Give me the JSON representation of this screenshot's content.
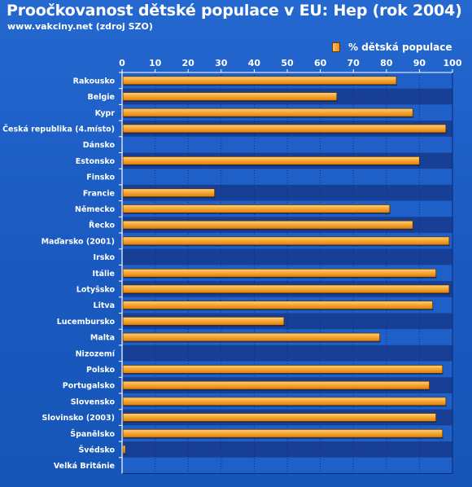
{
  "header": {
    "title": "Proočkovanost dětské populace v EU: Hep (rok 2004)",
    "subtitle": "www.vakciny.net (zdroj SZO)"
  },
  "colors": {
    "background": "#1e5ec6",
    "band_light": "#1f5fc8",
    "band_dark": "#173f95",
    "bar_light": "#f9c766",
    "bar_dark": "#ee8a10",
    "bar_edge": "#5a3000"
  },
  "chart_data": {
    "type": "bar",
    "orientation": "horizontal",
    "title": "Proočkovanost dětské populace v EU: Hep (rok 2004)",
    "xlim": [
      0,
      100
    ],
    "x_ticks": [
      0,
      10,
      20,
      30,
      40,
      50,
      60,
      70,
      80,
      90,
      100
    ],
    "x_axis_position": "top",
    "grid": true,
    "legend_position": "top-right",
    "categories": [
      "Rakousko",
      "Belgie",
      "Kypr",
      "Česká republika (4.místo)",
      "Dánsko",
      "Estonsko",
      "Finsko",
      "Francie",
      "Německo",
      "Řecko",
      "Maďarsko (2001)",
      "Irsko",
      "Itálie",
      "Lotyšsko",
      "Litva",
      "Lucembursko",
      "Malta",
      "Nizozemí",
      "Polsko",
      "Portugalsko",
      "Slovensko",
      "Slovinsko (2003)",
      "Španělsko",
      "Švédsko",
      "Velká Británie"
    ],
    "series": [
      {
        "name": "% dětská populace",
        "values": [
          83,
          65,
          88,
          98,
          null,
          90,
          null,
          28,
          81,
          88,
          99,
          null,
          95,
          99,
          94,
          49,
          78,
          null,
          97,
          93,
          98,
          95,
          97,
          1,
          null
        ]
      }
    ]
  }
}
